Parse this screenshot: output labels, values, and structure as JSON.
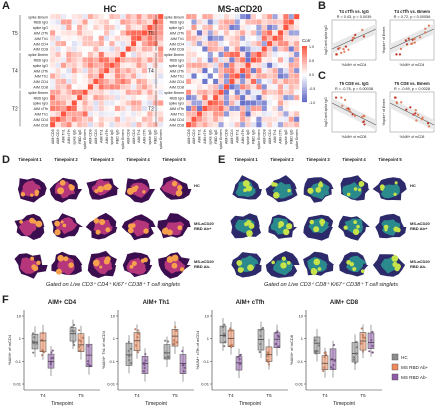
{
  "panelA": {
    "label": "A",
    "hc_title": "HC",
    "ms_title": "MS-aCD20",
    "row_labels": [
      "spike Bmem",
      "RBD IgG",
      "spike IgG",
      "AIM cTfh",
      "AIM Th1",
      "AIM CD4",
      "AIM CD8"
    ],
    "col_labels": [
      "AIM CD8",
      "AIM CD4",
      "AIM Th1",
      "AIM cTfh",
      "spike IgG",
      "RBD IgG",
      "spike Bmem"
    ],
    "timepoints": [
      "T5",
      "T4",
      "T2"
    ],
    "legend_title": "Corr",
    "legend_ticks": [
      "1.0",
      "0.5",
      "0.0",
      "-0.5",
      "-1.0"
    ]
  },
  "panelB": {
    "label": "B",
    "plot1_title": "T4 cTfh vs. IgG",
    "plot1_stat": "R = 0.43, p = 0.0039",
    "plot2_title": "T4 cTfh vs. Bmem",
    "plot2_stat": "R = 0.72, p = 0.00056",
    "ylabel1": "log10 anti-spike IgG",
    "ylabel2": "%spike+ of Bmem",
    "xlabel": "%AIM+ of mCD4"
  },
  "panelC": {
    "label": "C",
    "plot1_title": "T5 CD8 vs. IgG",
    "plot1_stat": "R = -0.76, p = 0.00038",
    "plot2_title": "T5 CD8 vs. Bmem",
    "plot2_stat": "R = -0.69, p = 0.0028",
    "xlabel": "%AIM+ of mCD8"
  },
  "panelD": {
    "label": "D",
    "timepoints": [
      "Timepoint 1",
      "Timepoint 2",
      "Timepoint 3",
      "Timepoint 4",
      "Timepoint 5"
    ],
    "rows": [
      "HC",
      "MS-aCD20 RBD Ab+",
      "MS-aCD20 RBD Ab-"
    ],
    "caption": "Gated on Live CD3⁺ CD4⁺ Ki67⁺ CD38⁺ T cell singlets"
  },
  "panelE": {
    "label": "E",
    "timepoints": [
      "Timepoint 1",
      "Timepoint 2",
      "Timepoint 3",
      "Timepoint 4",
      "Timepoint 5"
    ],
    "rows": [
      "HC",
      "MS-aCD20 RBD Ab+",
      "MS-aCD20 RBD Ab-"
    ],
    "caption": "Gated on Live CD3⁺ CD8⁺ Ki67⁺ CD38⁺ T cell singlets"
  },
  "panelF": {
    "label": "F",
    "plots": [
      {
        "title": "AIM+ CD4",
        "ylabel": "%AIM+ of mCD4"
      },
      {
        "title": "AIM+ Th1",
        "ylabel": "%AIM+ Th1 of mCD4"
      },
      {
        "title": "AIM+ cTfh",
        "ylabel": "%AIM+ cTfh of mCD4"
      },
      {
        "title": "AIM+ CD8",
        "ylabel": "%AIM+ of mCD8"
      }
    ],
    "x_ticks": [
      "T4",
      "T5"
    ],
    "xlabel": "Timepoint",
    "y_ticks": [
      "10",
      "1",
      "0.1",
      "0.01"
    ],
    "legend": [
      "HC",
      "MS RBD Ab+",
      "MS RBD Ab-"
    ],
    "colors": {
      "HC": "#8c8c8c",
      "MS RBD Ab+": "#f08a5d",
      "MS RBD Ab-": "#8e5aa8"
    }
  }
}
